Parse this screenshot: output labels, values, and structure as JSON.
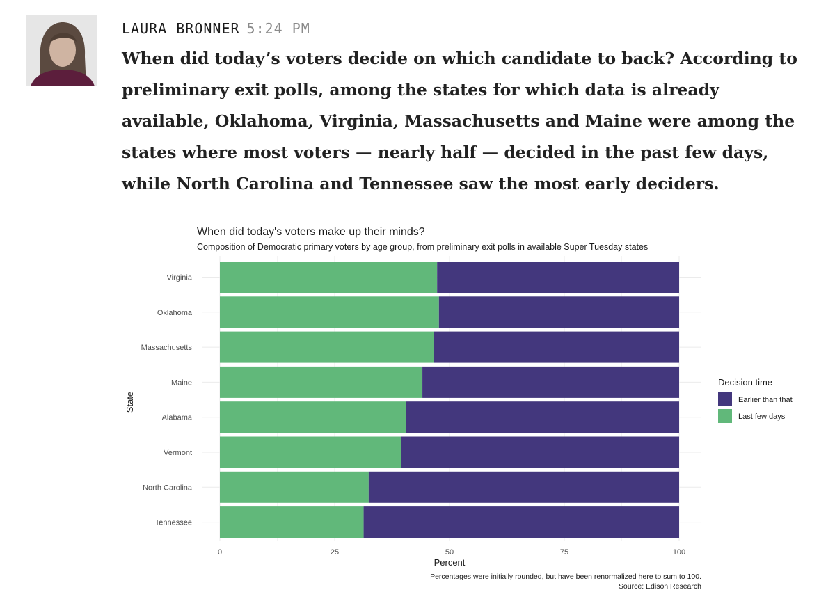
{
  "post": {
    "author": "LAURA BRONNER",
    "time": "5:24 PM",
    "body": "When did today’s voters decide on which candidate to back? According to preliminary exit polls, among the states for which data is already available, Oklahoma, Virginia, Massachusetts and Maine were among the states where most voters — nearly half — decided in the past few days, while North Carolina and Tennessee saw the most early deciders."
  },
  "chart_data": {
    "type": "bar",
    "orientation": "horizontal",
    "stacked": true,
    "title": "When did today's voters make up their minds?",
    "subtitle": "Composition of Democratic primary voters by age group, from preliminary exit polls in available Super Tuesday states",
    "xlabel": "Percent",
    "ylabel": "State",
    "xlim": [
      0,
      100
    ],
    "xticks": [
      "0",
      "25",
      "50",
      "75",
      "100"
    ],
    "categories": [
      "Virginia",
      "Oklahoma",
      "Massachusetts",
      "Maine",
      "Alabama",
      "Vermont",
      "North Carolina",
      "Tennessee"
    ],
    "series": [
      {
        "name": "Last few days",
        "color": "#61b87a",
        "values": [
          47.3,
          47.7,
          46.6,
          44.1,
          40.5,
          39.4,
          32.4,
          31.3
        ]
      },
      {
        "name": "Earlier than that",
        "color": "#43377d",
        "values": [
          52.7,
          52.3,
          53.4,
          55.9,
          59.5,
          60.6,
          67.6,
          68.7
        ]
      }
    ],
    "legend": {
      "title": "Decision time",
      "position": "right",
      "items": [
        {
          "label": "Earlier than that",
          "color": "#43377d"
        },
        {
          "label": "Last few days",
          "color": "#61b87a"
        }
      ]
    },
    "grid": true,
    "caption": [
      "Percentages were initially rounded, but have been renormalized here to sum to 100.",
      "Source: Edison Research"
    ]
  }
}
